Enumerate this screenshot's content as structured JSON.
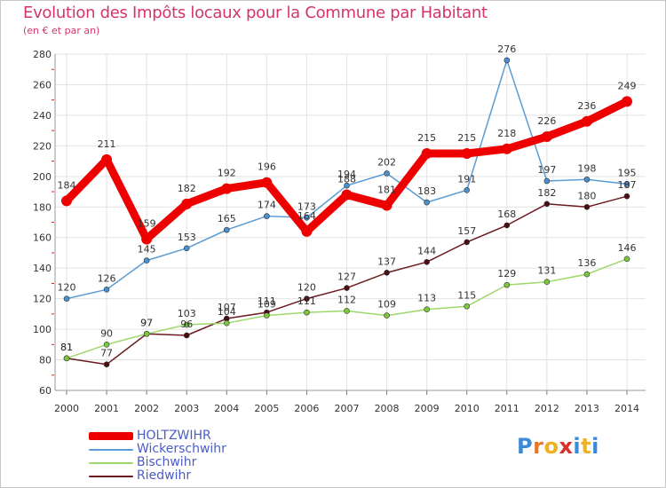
{
  "title": "Evolution des Impôts locaux pour la Commune par Habitant",
  "subtitle": "(en € et par an)",
  "logo": {
    "letters": [
      "P",
      "r",
      "o",
      "x",
      "i",
      "t",
      "i"
    ],
    "colors": [
      "#3a8ad8",
      "#e8762a",
      "#f0b020",
      "#d8302a",
      "#3a8ad8",
      "#f0b020",
      "#3a8ad8"
    ]
  },
  "chart_data": {
    "type": "line",
    "title": "Evolution des Impôts locaux pour la Commune par Habitant",
    "subtitle": "(en € et par an)",
    "x": [
      "2000",
      "2001",
      "2002",
      "2003",
      "2004",
      "2005",
      "2006",
      "2007",
      "2008",
      "2009",
      "2010",
      "2011",
      "2012",
      "2013",
      "2014"
    ],
    "ylim": [
      60,
      280
    ],
    "yticks": [
      60,
      80,
      100,
      120,
      140,
      160,
      180,
      200,
      220,
      240,
      260,
      280
    ],
    "grid": true,
    "legend_position": "bottom-left",
    "series": [
      {
        "name": "HOLTZWIHR",
        "color": "#ee0000",
        "values": [
          184,
          211,
          159,
          182,
          192,
          196,
          164,
          188,
          181,
          215,
          215,
          218,
          226,
          236,
          249
        ]
      },
      {
        "name": "Wickerschwihr",
        "color": "#5b9bd5",
        "values": [
          120,
          126,
          145,
          153,
          165,
          174,
          173,
          194,
          202,
          183,
          191,
          276,
          197,
          198,
          195
        ]
      },
      {
        "name": "Bischwihr",
        "color": "#9ed86a",
        "values": [
          81,
          90,
          97,
          103,
          104,
          109,
          111,
          112,
          109,
          113,
          115,
          129,
          131,
          136,
          146
        ]
      },
      {
        "name": "Riedwihr",
        "color": "#6b1a1f",
        "values": [
          81,
          77,
          97,
          96,
          107,
          111,
          120,
          127,
          137,
          144,
          157,
          168,
          182,
          180,
          187
        ]
      }
    ]
  }
}
